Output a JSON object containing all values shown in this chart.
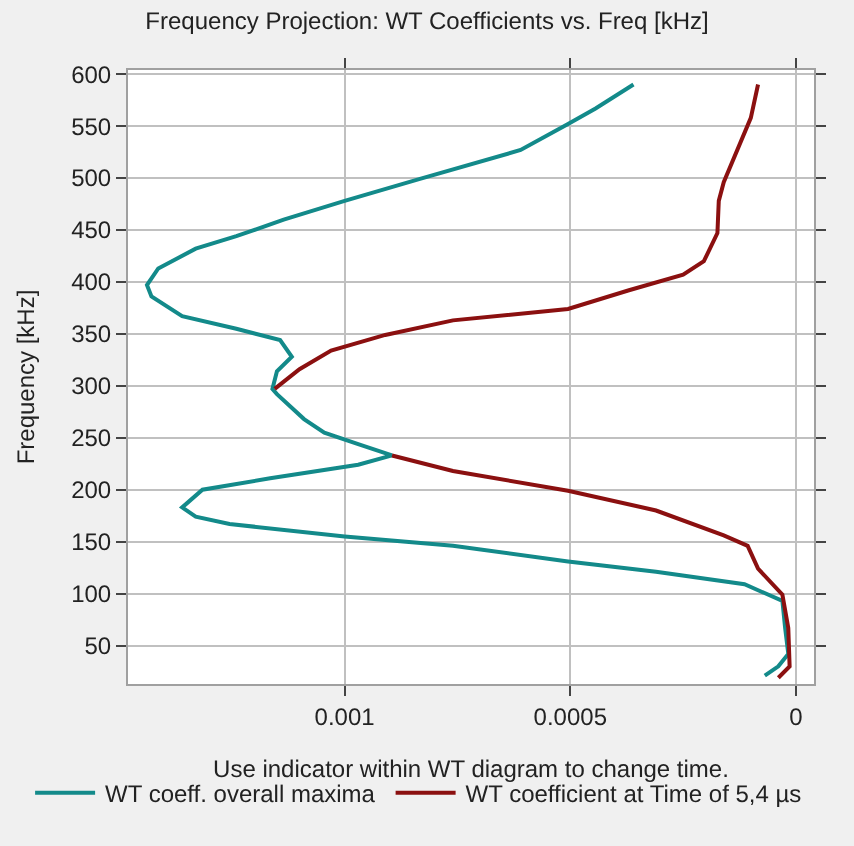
{
  "chart_data": {
    "type": "line",
    "title": "Frequency Projection: WT Coefficients vs. Freq [kHz]",
    "xlabel": "Use indicator within WT diagram to change time.",
    "ylabel": "Frequency [kHz]",
    "xlim": [
      0.00148,
      -4e-05
    ],
    "xticks": [
      0.001,
      0.0005,
      0
    ],
    "ylim": [
      13,
      604
    ],
    "yticks": [
      50,
      100,
      150,
      200,
      250,
      300,
      350,
      400,
      450,
      500,
      550,
      600
    ],
    "grid": true,
    "legend": "bottom",
    "marker": "none",
    "line_style": "solid",
    "series": [
      {
        "name": "WT coeff. overall maxima",
        "color": "#138a8a",
        "x": [
          0.00036,
          0.000444,
          0.000505,
          0.00061,
          0.000835,
          0.001,
          0.001135,
          0.00124,
          0.00133,
          0.001413,
          0.001438,
          0.001428,
          0.00136,
          0.00124,
          0.001143,
          0.001117,
          0.00115,
          0.00116,
          0.00115,
          0.00109,
          0.001045,
          0.00097,
          0.000895,
          0.00097,
          0.001165,
          0.001315,
          0.00136,
          0.00133,
          0.001255,
          0.001,
          0.00076,
          0.000505,
          0.00031,
          0.000114,
          3e-05,
          2.4e-05,
          1.7e-05,
          3.9e-05,
          6.9e-05
        ],
        "values": [
          590,
          567,
          552,
          527,
          499,
          478,
          460,
          444,
          432,
          413,
          397,
          386,
          367,
          355,
          344,
          328,
          314,
          297,
          292,
          268,
          255,
          244,
          233,
          224,
          211,
          200,
          183,
          174,
          167,
          155,
          146,
          131,
          121,
          109,
          93,
          67,
          42,
          30,
          21
        ]
      },
      {
        "name": "WT coefficient at Time of 5,4 µs",
        "color": "#8b1010",
        "x": [
          8.4e-05,
          0.0001,
          0.00016,
          0.000171,
          0.000174,
          0.000204,
          0.00025,
          0.00037,
          0.000505,
          0.00076,
          0.00091,
          0.00103,
          0.0011,
          0.001155,
          null,
          0.000895,
          0.00076,
          0.000505,
          0.00031,
          0.00016,
          0.000107,
          8.4e-05,
          3e-05,
          1.7e-05,
          1.4e-05,
          3.9e-05
        ],
        "values": [
          590,
          558,
          496,
          478,
          447,
          420,
          407,
          392,
          374,
          363,
          349,
          334,
          316,
          297,
          null,
          233,
          218,
          199,
          180,
          156,
          146,
          124,
          99,
          67,
          30,
          19
        ]
      }
    ]
  }
}
